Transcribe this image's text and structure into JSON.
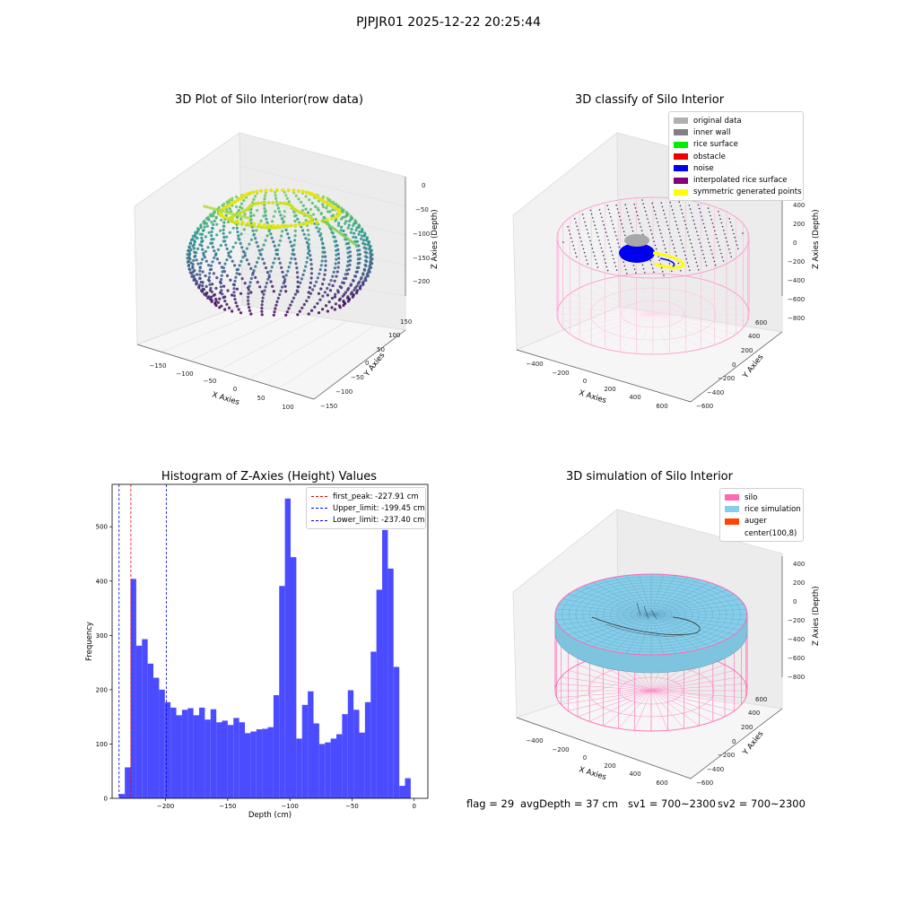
{
  "suptitle": "PJPJR01 2025-12-22 20:25:44",
  "panels": {
    "raw": {
      "title": "3D Plot of Silo Interior(row data)",
      "xlabel": "X Axies",
      "ylabel": "Y Axies",
      "zlabel": "Z Axies (Depth)",
      "xticks": [
        "−150",
        "−100",
        "−50",
        "0",
        "50",
        "100"
      ],
      "yticks": [
        "150",
        "100",
        "50",
        "0",
        "−50",
        "−100",
        "−150"
      ],
      "zticks": [
        "0",
        "−50",
        "−100",
        "−150",
        "−200"
      ]
    },
    "classify": {
      "title": "3D classify of Silo Interior",
      "xlabel": "X Axies",
      "ylabel": "Y Axies",
      "zlabel": "Z Axies (Depth)",
      "xticks": [
        "−400",
        "−200",
        "0",
        "200",
        "400",
        "600"
      ],
      "yticks": [
        "600",
        "400",
        "200",
        "0",
        "−200",
        "−400",
        "−600"
      ],
      "zticks": [
        "400",
        "200",
        "0",
        "−200",
        "−400",
        "−600",
        "−800"
      ],
      "legend": [
        {
          "label": "original data",
          "color": "#b0b0b0"
        },
        {
          "label": "inner wall",
          "color": "#808080"
        },
        {
          "label": "rice surface",
          "color": "#00ee00"
        },
        {
          "label": "obstacle",
          "color": "#ee0000"
        },
        {
          "label": "noise",
          "color": "#0000ee"
        },
        {
          "label": "interpolated rice surface",
          "color": "#800080"
        },
        {
          "label": "symmetric generated points",
          "color": "#ffff00"
        }
      ]
    },
    "simulation": {
      "title": "3D simulation of Silo Interior",
      "xlabel": "X Axies",
      "ylabel": "Y Axies",
      "zlabel": "Z Axies (Depth)",
      "xticks": [
        "−400",
        "−200",
        "0",
        "200",
        "400",
        "600"
      ],
      "yticks": [
        "600",
        "400",
        "200",
        "0",
        "−200",
        "−400",
        "−600"
      ],
      "zticks": [
        "400",
        "200",
        "0",
        "−200",
        "−400",
        "−600",
        "−800"
      ],
      "legend": [
        {
          "label": "silo",
          "color": "#ff69b4"
        },
        {
          "label": "rice simulation",
          "color": "#87ceeb"
        },
        {
          "label": "auger",
          "color": "#ff4500"
        },
        {
          "label": "center(100,8)",
          "color": "#ffffff"
        }
      ]
    }
  },
  "chart_data": {
    "type": "bar",
    "title": "Histogram of Z-Axies (Height) Values",
    "xlabel": "Depth (cm)",
    "ylabel": "Frequency",
    "xlim": [
      -243,
      11
    ],
    "ylim": [
      0,
      578
    ],
    "xticks": [
      -200,
      -150,
      -100,
      -50,
      0
    ],
    "yticks": [
      0,
      100,
      200,
      300,
      400,
      500
    ],
    "bin_start": -237.4,
    "bin_width": 4.6,
    "color": "#4b4bff",
    "values": [
      8,
      57,
      404,
      281,
      293,
      248,
      222,
      200,
      177,
      167,
      153,
      163,
      166,
      153,
      167,
      145,
      164,
      140,
      143,
      135,
      148,
      140,
      120,
      123,
      127,
      128,
      131,
      190,
      391,
      552,
      444,
      110,
      172,
      197,
      138,
      100,
      103,
      110,
      118,
      155,
      199,
      163,
      121,
      177,
      270,
      384,
      494,
      423,
      242,
      23,
      37
    ],
    "vlines": [
      {
        "label": "first_peak: -227.91 cm",
        "x": -227.91,
        "color": "#ee0000"
      },
      {
        "label": "Upper_limit: -199.45 cm",
        "x": -199.45,
        "color": "#0000ee"
      },
      {
        "label": "Lower_limit: -237.40 cm",
        "x": -237.4,
        "color": "#0000ee"
      }
    ],
    "legend_position": "top-right"
  },
  "status": {
    "flag": "flag = 29",
    "avg_depth": "avgDepth = 37 cm",
    "sv1": "sv1 = 700~2300",
    "sv2": "sv2 = 700~2300"
  }
}
